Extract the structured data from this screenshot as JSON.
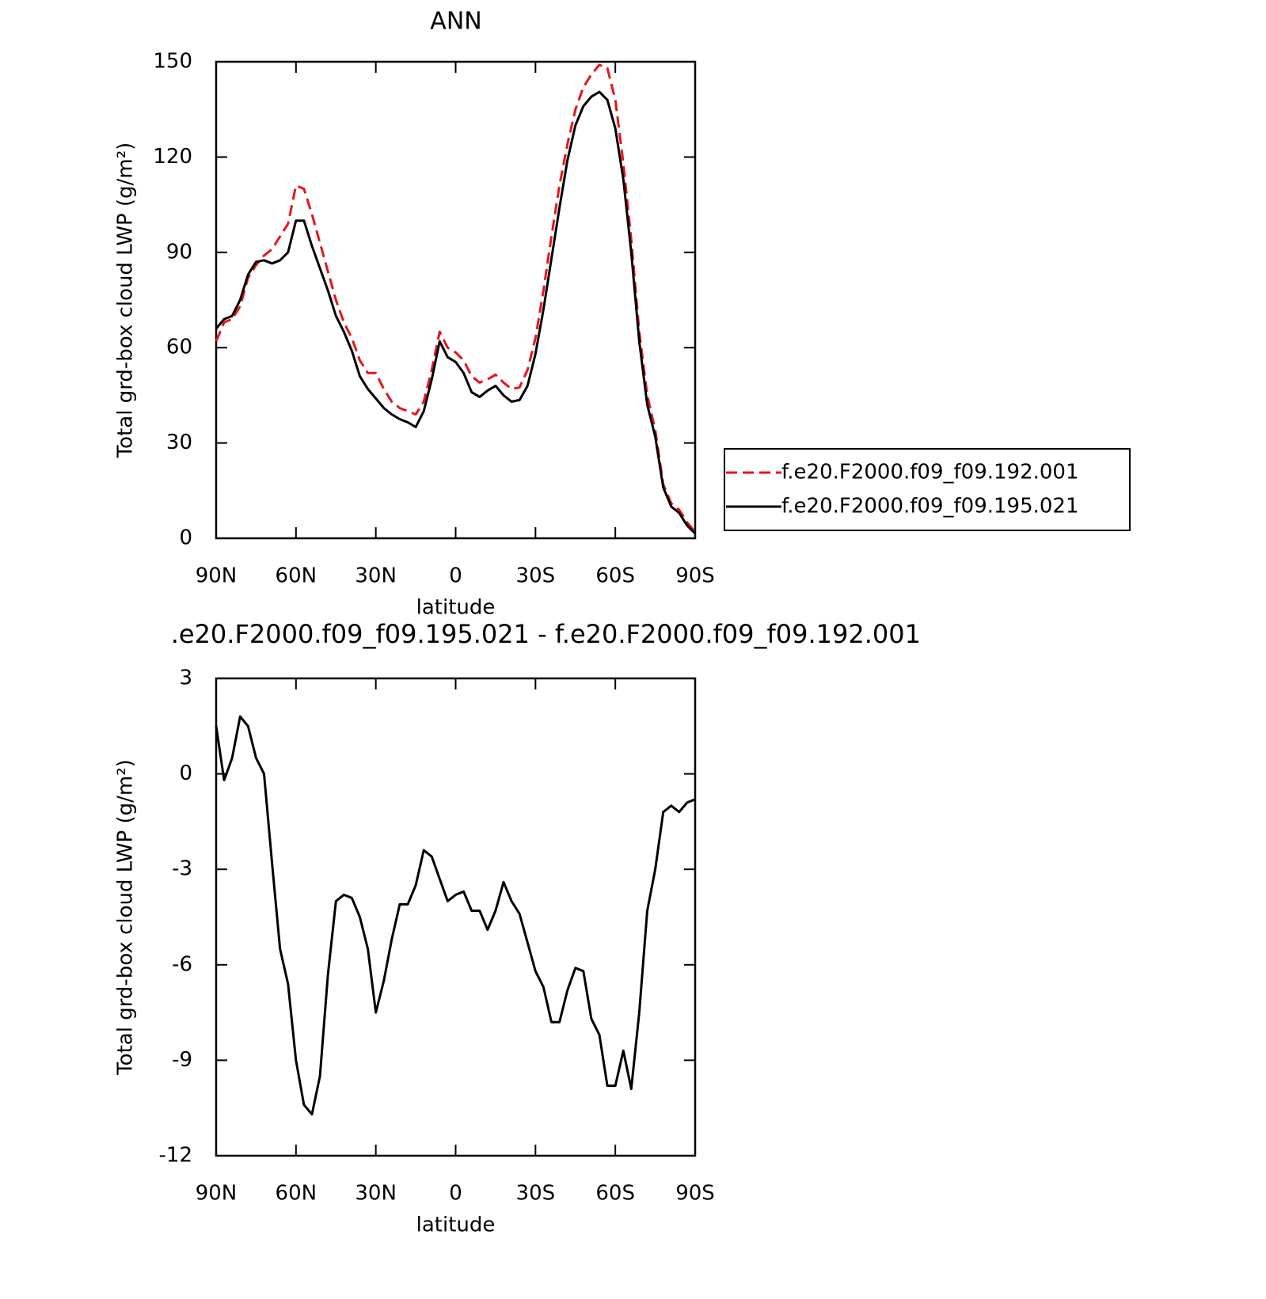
{
  "chart_data": [
    {
      "type": "line",
      "title": "ANN",
      "xlabel": "latitude",
      "ylabel": "Total grd-box cloud LWP (g/m²)",
      "x": [
        90,
        87,
        84,
        81,
        78,
        75,
        72,
        69,
        66,
        63,
        60,
        57,
        54,
        51,
        48,
        45,
        42,
        39,
        36,
        33,
        30,
        27,
        24,
        21,
        18,
        15,
        12,
        9,
        6,
        3,
        0,
        -3,
        -6,
        -9,
        -12,
        -15,
        -18,
        -21,
        -24,
        -27,
        -30,
        -33,
        -36,
        -39,
        -42,
        -45,
        -48,
        -51,
        -54,
        -57,
        -60,
        -63,
        -66,
        -69,
        -72,
        -75,
        -78,
        -81,
        -84,
        -87,
        -90
      ],
      "series": [
        {
          "name": "f.e20.F2000.f09_f09.192.001",
          "color": "#e8141c",
          "linestyle": "dashed",
          "values": [
            62,
            68,
            69,
            73,
            82,
            86,
            89,
            91,
            95,
            99,
            111,
            110,
            102,
            93,
            84,
            75,
            68,
            63,
            56,
            52,
            52,
            47,
            43,
            41,
            40,
            39,
            43,
            53,
            65,
            60,
            58.5,
            56,
            51,
            49,
            50,
            51.5,
            49,
            47,
            47.5,
            53,
            63,
            78,
            95,
            111,
            124,
            135,
            142,
            146,
            149,
            148,
            138,
            118,
            94,
            65,
            45,
            34,
            17,
            11,
            9,
            5,
            2
          ]
        },
        {
          "name": "f.e20.F2000.f09_f09.195.021",
          "color": "#000000",
          "linestyle": "solid",
          "values": [
            66,
            69,
            70,
            75,
            83,
            87,
            87.5,
            86.5,
            87.5,
            90,
            100,
            100,
            92,
            85,
            78,
            70,
            65,
            59,
            51,
            47,
            44,
            41,
            39,
            37.5,
            36.5,
            35,
            40,
            50,
            62,
            57,
            55.5,
            52,
            46,
            44.5,
            46.5,
            48,
            45,
            43,
            43.5,
            48,
            58,
            72,
            88,
            104,
            119,
            130,
            136,
            139,
            140.5,
            138,
            129,
            113,
            90,
            62,
            42,
            32,
            16,
            10,
            8,
            4,
            1.5
          ]
        }
      ],
      "xlim": [
        90,
        -90
      ],
      "xticks": [
        {
          "value": 90,
          "label": "90N"
        },
        {
          "value": 60,
          "label": "60N"
        },
        {
          "value": 30,
          "label": "30N"
        },
        0,
        {
          "value": -30,
          "label": "30S"
        },
        {
          "value": -60,
          "label": "60S"
        },
        {
          "value": -90,
          "label": "90S"
        }
      ],
      "ylim": [
        0,
        150
      ],
      "yticks": [
        0,
        30,
        60,
        90,
        120,
        150
      ],
      "legend": "right"
    },
    {
      "type": "line",
      "title": ".e20.F2000.f09_f09.195.021 - f.e20.F2000.f09_f09.192.001",
      "xlabel": "latitude",
      "ylabel": "Total grd-box cloud LWP (g/m²)",
      "x": [
        90,
        87,
        84,
        81,
        78,
        75,
        72,
        69,
        66,
        63,
        60,
        57,
        54,
        51,
        48,
        45,
        42,
        39,
        36,
        33,
        30,
        27,
        24,
        21,
        18,
        15,
        12,
        9,
        6,
        3,
        0,
        -3,
        -6,
        -9,
        -12,
        -15,
        -18,
        -21,
        -24,
        -27,
        -30,
        -33,
        -36,
        -39,
        -42,
        -45,
        -48,
        -51,
        -54,
        -57,
        -60,
        -63,
        -66,
        -69,
        -72,
        -75,
        -78,
        -81,
        -84,
        -87,
        -90
      ],
      "color": "#000000",
      "values": [
        1.5,
        -0.2,
        0.5,
        1.8,
        1.5,
        0.5,
        0,
        -2.8,
        -5.5,
        -6.6,
        -9.0,
        -10.4,
        -10.7,
        -9.5,
        -6.3,
        -4.0,
        -3.8,
        -3.9,
        -4.5,
        -5.5,
        -7.5,
        -6.5,
        -5.2,
        -4.1,
        -4.1,
        -3.5,
        -2.4,
        -2.6,
        -3.3,
        -4.0,
        -3.8,
        -3.7,
        -4.3,
        -4.3,
        -4.9,
        -4.3,
        -3.4,
        -4.0,
        -4.4,
        -5.3,
        -6.2,
        -6.7,
        -7.8,
        -7.8,
        -6.8,
        -6.1,
        -6.2,
        -7.7,
        -8.2,
        -9.8,
        -9.8,
        -8.7,
        -9.9,
        -7.5,
        -4.3,
        -3.0,
        -1.2,
        -1.0,
        -1.2,
        -0.9,
        -0.8
      ],
      "xlim": [
        90,
        -90
      ],
      "xticks": [
        {
          "value": 90,
          "label": "90N"
        },
        {
          "value": 60,
          "label": "60N"
        },
        {
          "value": 30,
          "label": "30N"
        },
        0,
        {
          "value": -30,
          "label": "30S"
        },
        {
          "value": -60,
          "label": "60S"
        },
        {
          "value": -90,
          "label": "90S"
        }
      ],
      "ylim": [
        -12,
        3
      ],
      "yticks": [
        -12,
        -9,
        -6,
        -3,
        0,
        3
      ]
    }
  ]
}
